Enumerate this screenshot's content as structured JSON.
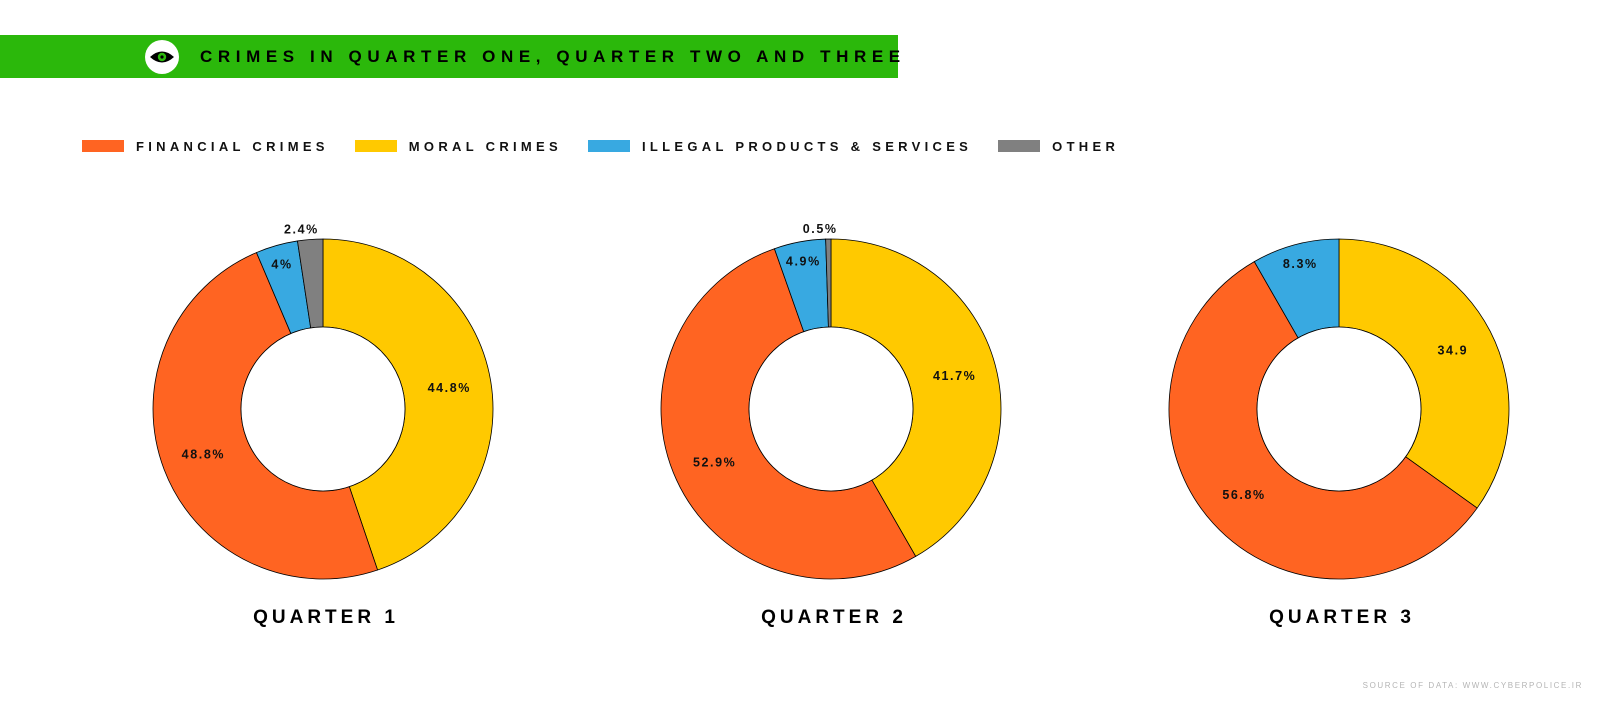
{
  "header": {
    "title": "CRIMES IN QUARTER ONE, QUARTER TWO AND THREE",
    "bar_color": "#2bb80b",
    "icon": "eye-icon"
  },
  "legend": [
    {
      "label": "FINANCIAL CRIMES",
      "color": "#ff6422"
    },
    {
      "label": "MORAL CRIMES",
      "color": "#ffc900"
    },
    {
      "label": "ILLEGAL PRODUCTS & SERVICES",
      "color": "#38a9e1"
    },
    {
      "label": "OTHER",
      "color": "#808080"
    }
  ],
  "chart_data": [
    {
      "type": "pie",
      "title": "QUARTER 1",
      "categories": [
        "Financial Crimes",
        "Moral Crimes",
        "Illegal Products & Services",
        "Other"
      ],
      "values": [
        48.8,
        44.8,
        4,
        2.4
      ],
      "data_labels": [
        "48.8%",
        "44.8%",
        "4%",
        "2.4%"
      ]
    },
    {
      "type": "pie",
      "title": "QUARTER 2",
      "categories": [
        "Financial Crimes",
        "Moral Crimes",
        "Illegal Products & Services",
        "Other"
      ],
      "values": [
        52.9,
        41.7,
        4.9,
        0.5
      ],
      "data_labels": [
        "52.9%",
        "41.7%",
        "4.9%",
        "0.5%"
      ]
    },
    {
      "type": "pie",
      "title": "QUARTER 3",
      "categories": [
        "Financial Crimes",
        "Moral Crimes",
        "Illegal Products & Services",
        "Other"
      ],
      "values": [
        56.8,
        34.9,
        8.3,
        0
      ],
      "data_labels": [
        "56.8%",
        "34.9",
        "8.3%",
        ""
      ]
    }
  ],
  "footer": {
    "source": "SOURCE OF DATA: WWW.CYBERPOLICE.IR"
  }
}
